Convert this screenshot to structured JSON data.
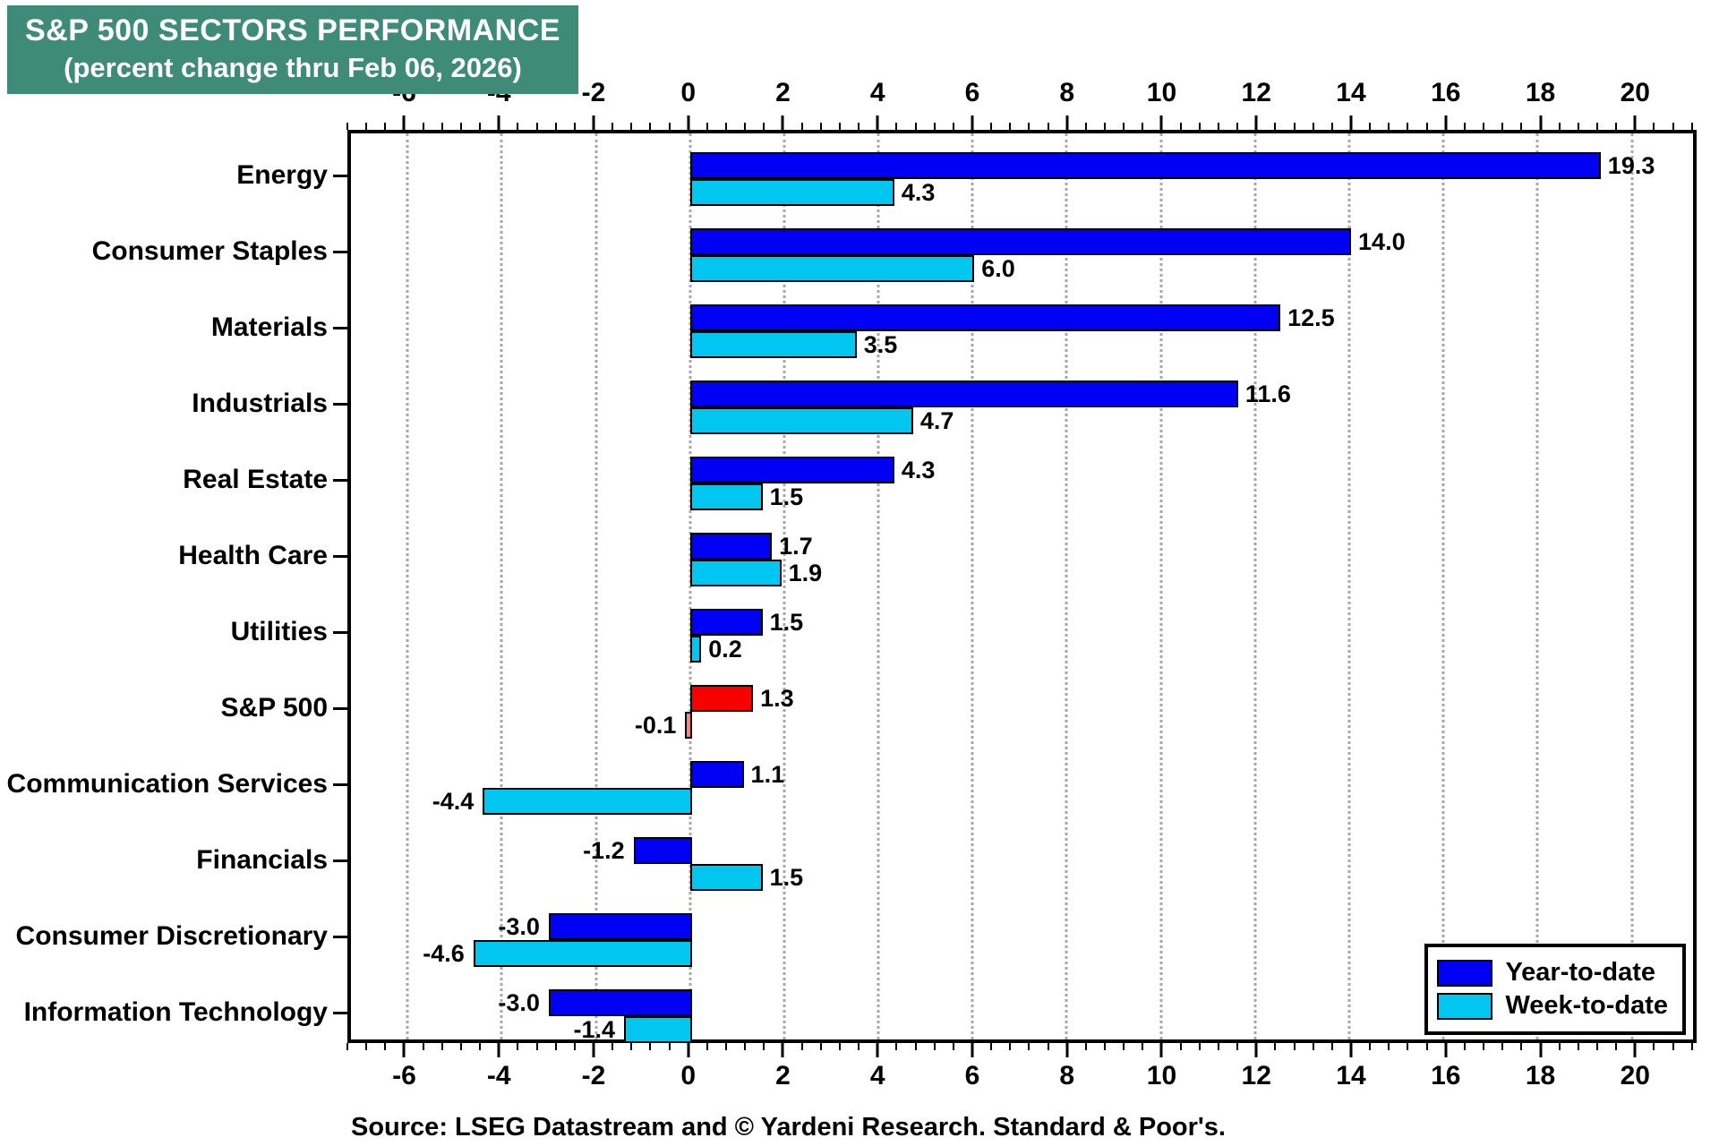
{
  "header": {
    "title_line1": "S&P 500 SECTORS PERFORMANCE",
    "title_line2": "(percent change thru Feb 06, 2026)",
    "bg_color": "#3f8b7a"
  },
  "source_note": "Source: LSEG Datastream and © Yardeni Research. Standard & Poor's.",
  "legend": {
    "position": "bottom-right",
    "items": [
      {
        "label": "Year-to-date",
        "color": "#0000f5"
      },
      {
        "label": "Week-to-date",
        "color": "#00c6f0"
      }
    ]
  },
  "colors": {
    "ytd_bar": "#0000f5",
    "wtd_bar": "#00c6f0",
    "sp500_ytd_bar": "#f80000",
    "sp500_wtd_bar": "#f58488",
    "gridline": "#a8a8a8",
    "title_bg": "#3f8b7a"
  },
  "chart_data": {
    "type": "bar",
    "orientation": "horizontal",
    "title": "S&P 500 SECTORS PERFORMANCE",
    "subtitle": "(percent change thru Feb 06, 2026)",
    "xlabel": "percent change",
    "grid": "dotted-vertical",
    "axis": {
      "min": -7.2,
      "max": 21.3,
      "major_tick_step": 2,
      "minor_tick_step": 0.4,
      "ticks": [
        -6,
        -4,
        -2,
        0,
        2,
        4,
        6,
        8,
        10,
        12,
        14,
        16,
        18,
        20
      ],
      "mirrored": true
    },
    "series_names": [
      "Year-to-date",
      "Week-to-date"
    ],
    "categories": [
      "Energy",
      "Consumer Staples",
      "Materials",
      "Industrials",
      "Real Estate",
      "Health Care",
      "Utilities",
      "S&P 500",
      "Communication Services",
      "Financials",
      "Consumer Discretionary",
      "Information Technology"
    ],
    "rows": [
      {
        "category": "Energy",
        "ytd": 19.3,
        "wtd": 4.3
      },
      {
        "category": "Consumer Staples",
        "ytd": 14.0,
        "wtd": 6.0
      },
      {
        "category": "Materials",
        "ytd": 12.5,
        "wtd": 3.5
      },
      {
        "category": "Industrials",
        "ytd": 11.6,
        "wtd": 4.7
      },
      {
        "category": "Real Estate",
        "ytd": 4.3,
        "wtd": 1.5
      },
      {
        "category": "Health Care",
        "ytd": 1.7,
        "wtd": 1.9
      },
      {
        "category": "Utilities",
        "ytd": 1.5,
        "wtd": 0.2
      },
      {
        "category": "S&P 500",
        "ytd": 1.3,
        "wtd": -0.1,
        "ytd_color": "#f80000",
        "wtd_color": "#f58488"
      },
      {
        "category": "Communication Services",
        "ytd": 1.1,
        "wtd": -4.4
      },
      {
        "category": "Financials",
        "ytd": -1.2,
        "wtd": 1.5
      },
      {
        "category": "Consumer Discretionary",
        "ytd": -3.0,
        "wtd": -4.6
      },
      {
        "category": "Information Technology",
        "ytd": -3.0,
        "wtd": -1.4
      }
    ],
    "value_label_format": "one-decimal"
  }
}
